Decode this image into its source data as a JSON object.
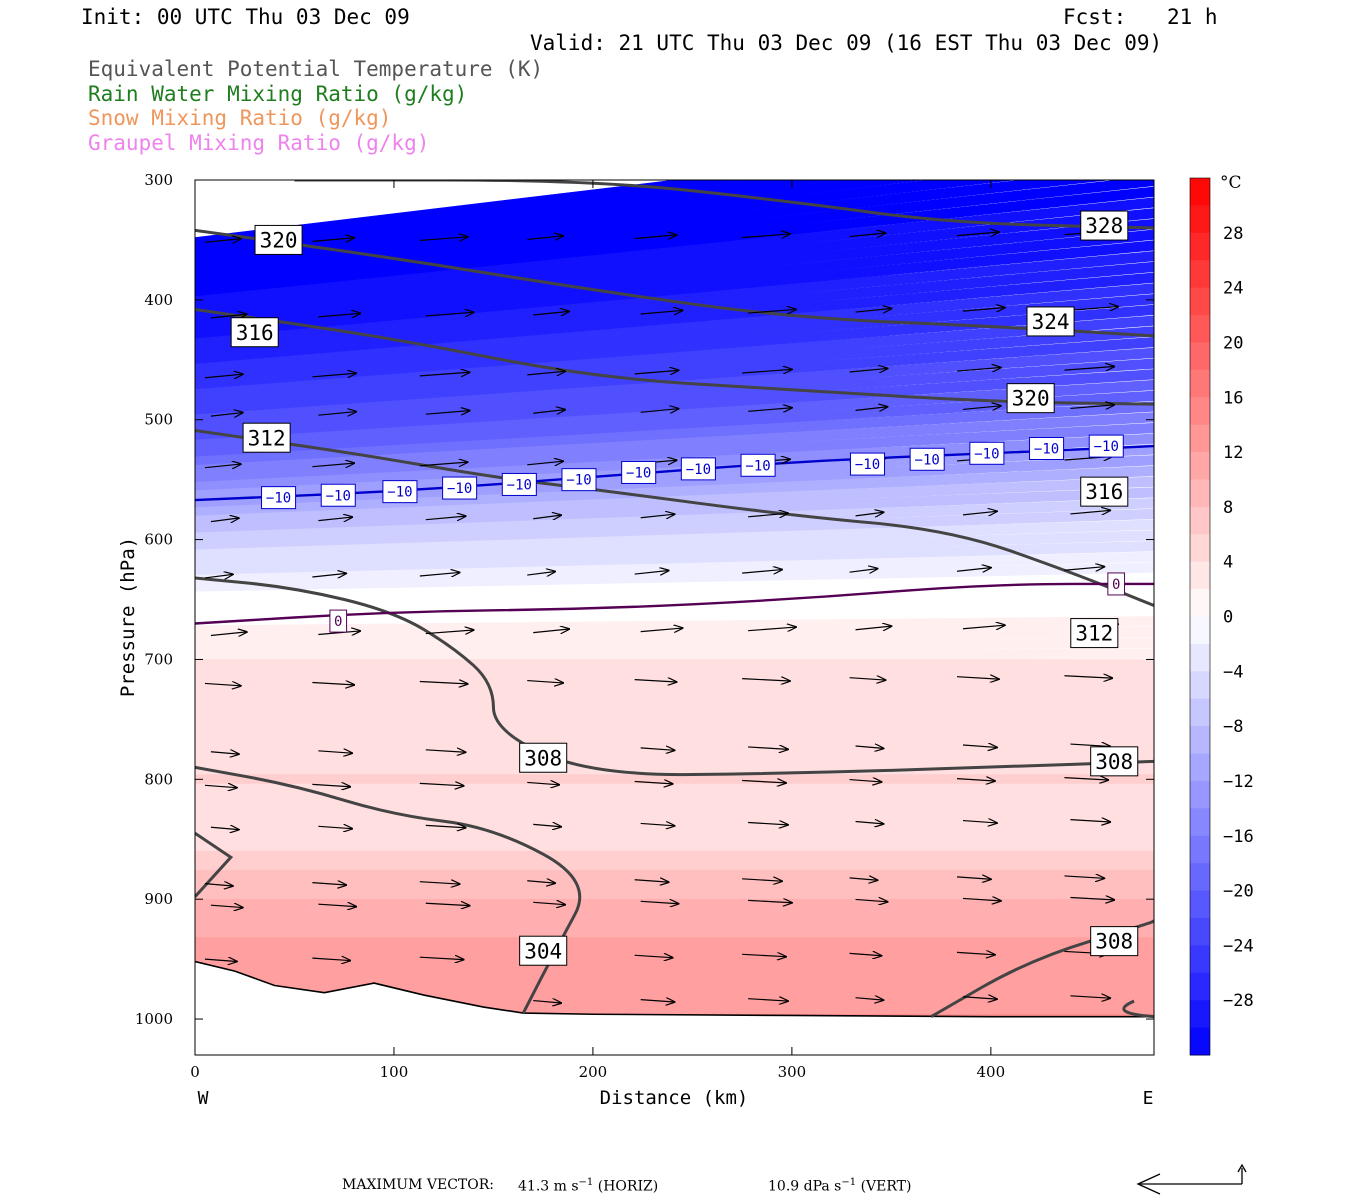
{
  "header": {
    "init": "Init: 00 UTC Thu 03 Dec 09",
    "fcst_label": "Fcst:",
    "fcst_value": "21 h",
    "valid": "Valid: 21 UTC Thu 03 Dec 09 (16 EST Thu 03 Dec 09)"
  },
  "fields": [
    {
      "label": "Equivalent Potential Temperature (K)",
      "color": "#555555"
    },
    {
      "label": "Rain Water Mixing Ratio (g/kg)",
      "color": "#1e7d1e"
    },
    {
      "label": "Snow Mixing Ratio (g/kg)",
      "color": "#f0965a"
    },
    {
      "label": "Graupel Mixing Ratio (g/kg)",
      "color": "#ee82ee"
    }
  ],
  "footer": {
    "max_vector_label": "MAXIMUM VECTOR:",
    "horiz_value": "41.3",
    "horiz_unit": "m s",
    "horiz_exp": "−1",
    "horiz_tag": "(HORIZ)",
    "vert_value": "10.9",
    "vert_unit": "dPa s",
    "vert_exp": "−1",
    "vert_tag": "(VERT)"
  },
  "chart_data": {
    "type": "cross-section",
    "xlabel": "Distance (km)",
    "ylabel": "Pressure (hPa)",
    "xlim": [
      0,
      482
    ],
    "ylim": [
      1030,
      300
    ],
    "y_scale": "linear, inverted (pressure decreasing upward)",
    "x_ticks": [
      0,
      100,
      200,
      300,
      400
    ],
    "y_ticks": [
      300,
      400,
      500,
      600,
      700,
      800,
      900,
      1000
    ],
    "x_end_labels": {
      "left": "W",
      "right": "E"
    },
    "colorbar": {
      "unit": "°C",
      "ticks": [
        28,
        24,
        20,
        16,
        12,
        8,
        4,
        0,
        -4,
        -8,
        -12,
        -16,
        -20,
        -24,
        -28
      ],
      "tick_labels": [
        "28",
        "24",
        "20",
        "16",
        "12",
        "8",
        "4",
        "0",
        "−4",
        "−8",
        "−12",
        "−16",
        "−20",
        "−24",
        "−28"
      ],
      "range": [
        -32,
        32
      ],
      "cold_color": "#0000ff",
      "neutral_color": "#ffffff",
      "warm_color": "#ff0000"
    },
    "temperature_shading": {
      "field": "temperature (°C), filled contours every 2 °C",
      "profile": [
        [
          300,
          -34
        ],
        [
          400,
          -29
        ],
        [
          500,
          -20
        ],
        [
          560,
          -10
        ],
        [
          600,
          -5
        ],
        [
          650,
          0
        ],
        [
          700,
          3
        ],
        [
          800,
          5
        ],
        [
          850,
          4
        ],
        [
          900,
          9
        ],
        [
          950,
          12
        ],
        [
          1000,
          13
        ]
      ]
    },
    "terrain_surface": [
      [
        0,
        952
      ],
      [
        20,
        960
      ],
      [
        40,
        972
      ],
      [
        65,
        978
      ],
      [
        90,
        970
      ],
      [
        115,
        980
      ],
      [
        145,
        990
      ],
      [
        165,
        995
      ],
      [
        200,
        996
      ],
      [
        300,
        997
      ],
      [
        400,
        998
      ],
      [
        482,
        998
      ]
    ],
    "theta_e_contours": {
      "color": "#444444",
      "lines": [
        {
          "level": 328,
          "points": [
            [
              50,
              300
            ],
            [
              200,
              300
            ],
            [
              300,
              318
            ],
            [
              380,
              336
            ],
            [
              482,
              340
            ]
          ]
        },
        {
          "level": 324,
          "points": [
            [
              0,
              342
            ],
            [
              100,
              365
            ],
            [
              200,
              392
            ],
            [
              300,
              415
            ],
            [
              400,
              422
            ],
            [
              482,
              430
            ]
          ]
        },
        {
          "level": 320,
          "points": [
            [
              0,
              408
            ],
            [
              100,
              432
            ],
            [
              200,
              465
            ],
            [
              300,
              475
            ],
            [
              400,
              485
            ],
            [
              482,
              487
            ]
          ]
        },
        {
          "level": 316,
          "points": [
            [
              0,
              509
            ],
            [
              80,
              528
            ],
            [
              150,
              548
            ],
            [
              200,
              558
            ],
            [
              300,
              580
            ],
            [
              380,
              592
            ],
            [
              440,
              627
            ],
            [
              482,
              655
            ]
          ]
        },
        {
          "level": 312,
          "points": [
            [
              0,
              632
            ],
            [
              50,
              640
            ],
            [
              100,
              660
            ],
            [
              130,
              690
            ],
            [
              150,
              720
            ],
            [
              150,
              760
            ],
            [
              200,
              797
            ],
            [
              300,
              795
            ],
            [
              400,
              790
            ],
            [
              482,
              785
            ]
          ]
        },
        {
          "level": 308,
          "points": [
            [
              0,
              790
            ],
            [
              50,
              805
            ],
            [
              100,
              830
            ],
            [
              150,
              840
            ],
            [
              200,
              885
            ],
            [
              182,
              940
            ],
            [
              165,
              995
            ]
          ]
        },
        {
          "level": 304,
          "points": [
            [
              370,
              998
            ],
            [
              420,
              950
            ],
            [
              480,
              920
            ],
            [
              482,
              918
            ]
          ]
        }
      ],
      "labels": [
        {
          "text": "320",
          "x": 42,
          "p": 350
        },
        {
          "text": "316",
          "x": 30,
          "p": 427
        },
        {
          "text": "312",
          "x": 36,
          "p": 515
        },
        {
          "text": "308",
          "x": 175,
          "p": 782
        },
        {
          "text": "304",
          "x": 175,
          "p": 943
        },
        {
          "text": "328",
          "x": 457,
          "p": 338
        },
        {
          "text": "324",
          "x": 430,
          "p": 418
        },
        {
          "text": "320",
          "x": 420,
          "p": 482
        },
        {
          "text": "316",
          "x": 457,
          "p": 560
        },
        {
          "text": "312",
          "x": 452,
          "p": 678
        },
        {
          "text": "308",
          "x": 462,
          "p": 785
        },
        {
          "text": "308",
          "x": 462,
          "p": 935
        }
      ]
    },
    "isotherms": [
      {
        "level": -10,
        "color": "#0000cc",
        "points": [
          [
            0,
            567
          ],
          [
            100,
            560
          ],
          [
            200,
            548
          ],
          [
            300,
            535
          ],
          [
            400,
            528
          ],
          [
            482,
            522
          ]
        ],
        "labels": [
          [
            42,
            565
          ],
          [
            72,
            563
          ],
          [
            103,
            560
          ],
          [
            133,
            557
          ],
          [
            163,
            554
          ],
          [
            193,
            550
          ],
          [
            223,
            544
          ],
          [
            253,
            541
          ],
          [
            283,
            538
          ],
          [
            338,
            537
          ],
          [
            368,
            533
          ],
          [
            398,
            528
          ],
          [
            428,
            524
          ],
          [
            458,
            522
          ]
        ]
      },
      {
        "level": 0,
        "color": "#550055",
        "points": [
          [
            0,
            670
          ],
          [
            100,
            660
          ],
          [
            200,
            658
          ],
          [
            300,
            650
          ],
          [
            400,
            637
          ],
          [
            482,
            637
          ]
        ],
        "labels": [
          [
            72,
            668
          ],
          [
            463,
            637
          ]
        ]
      }
    ],
    "wind_vectors": {
      "color": "#000000",
      "note": "in-plane wind arrows (u component, omega) on a regular grid, pointing mostly eastward",
      "max_horizontal": "41.3 m s−1",
      "max_vertical": "10.9 dPa s−1"
    }
  }
}
